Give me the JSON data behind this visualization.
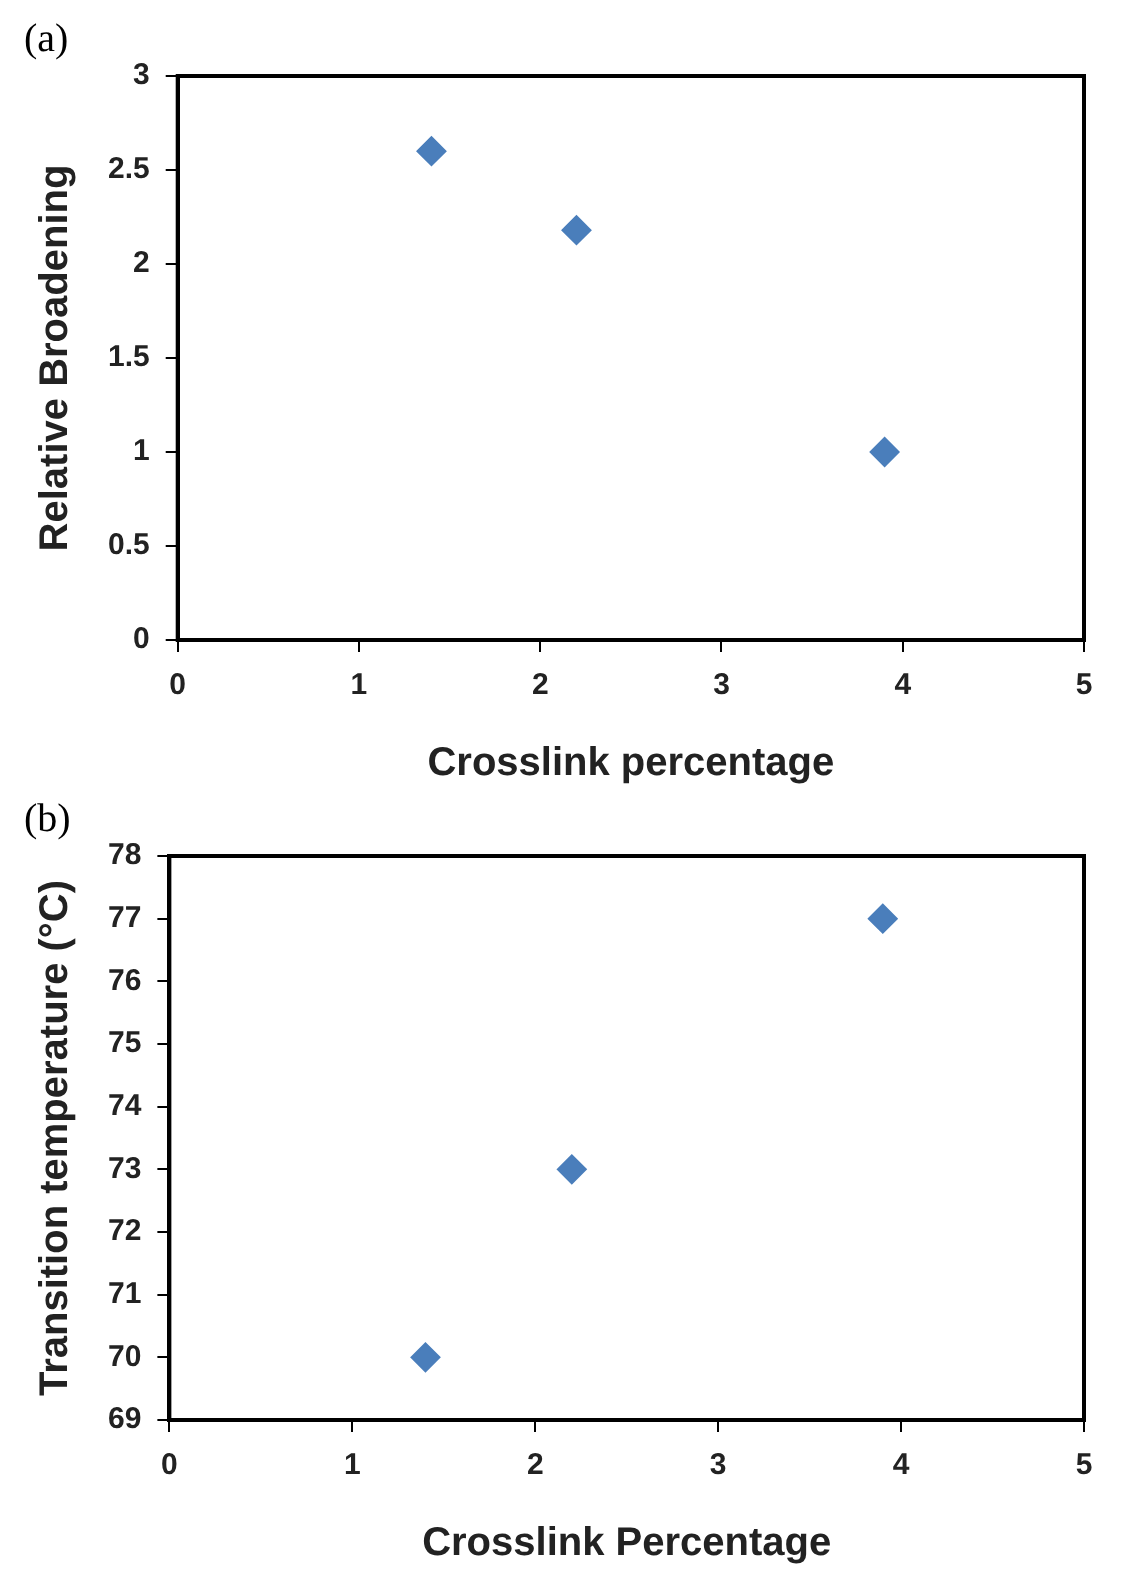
{
  "chart_data": [
    {
      "type": "scatter",
      "title": "(a)",
      "xlabel": "Crosslink percentage",
      "ylabel": "Relative Broadening",
      "x": [
        1.4,
        2.2,
        3.9
      ],
      "series": [
        {
          "color": "#4a7ebb",
          "values": [
            2.6,
            2.18,
            1.0
          ]
        }
      ],
      "xlim": [
        0,
        5
      ],
      "xticks": [
        0,
        1,
        2,
        3,
        4,
        5
      ],
      "ylim": [
        0,
        3
      ],
      "yticks": [
        0,
        0.5,
        1,
        1.5,
        2,
        2.5,
        3
      ],
      "grid": false,
      "legend": false,
      "marker": "diamond"
    },
    {
      "type": "scatter",
      "title": "(b)",
      "xlabel": "Crosslink Percentage",
      "ylabel": "Transition temperature (°C)",
      "x": [
        1.4,
        2.2,
        3.9
      ],
      "series": [
        {
          "color": "#4a7ebb",
          "values": [
            70,
            73,
            77
          ]
        }
      ],
      "xlim": [
        0,
        5
      ],
      "xticks": [
        0,
        1,
        2,
        3,
        4,
        5
      ],
      "ylim": [
        69,
        78
      ],
      "yticks": [
        69,
        70,
        71,
        72,
        73,
        74,
        75,
        76,
        77,
        78
      ],
      "grid": false,
      "legend": false,
      "marker": "diamond"
    }
  ]
}
